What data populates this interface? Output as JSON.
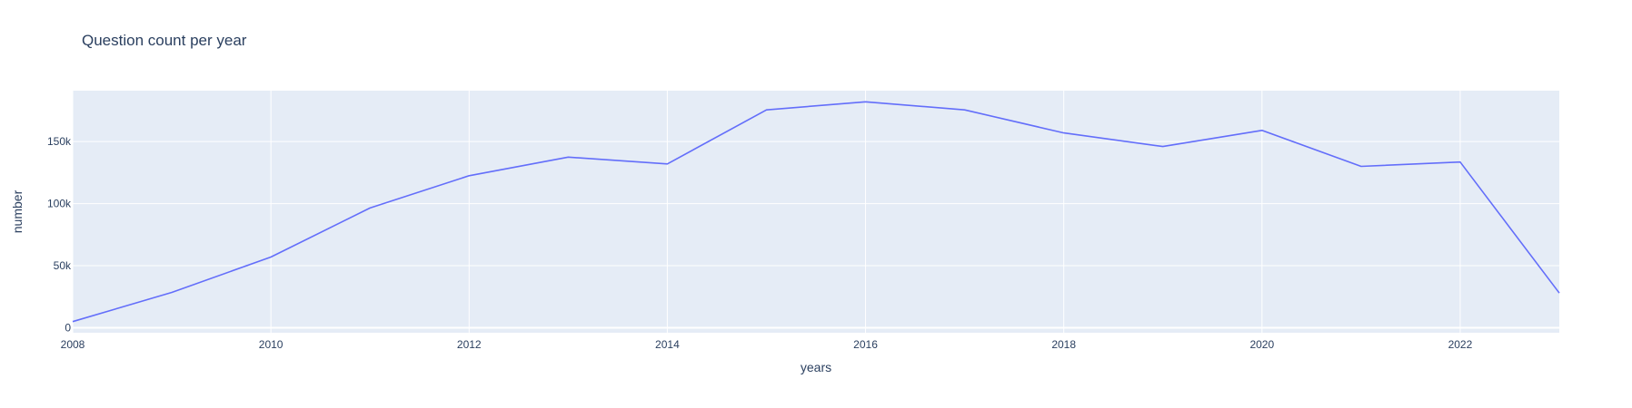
{
  "chart_data": {
    "type": "line",
    "title": "Question count per year",
    "xlabel": "years",
    "ylabel": "number",
    "x": [
      2008,
      2009,
      2010,
      2011,
      2012,
      2013,
      2014,
      2015,
      2016,
      2017,
      2018,
      2019,
      2020,
      2021,
      2022,
      2023
    ],
    "series": [
      {
        "values": [
          5000,
          28500,
          57000,
          96500,
          122500,
          137500,
          132000,
          175500,
          182000,
          175500,
          157000,
          146000,
          159000,
          130000,
          133500,
          28000
        ]
      }
    ],
    "xlim": [
      2008,
      2023
    ],
    "ylim": [
      -4000,
      191000
    ],
    "x_ticks": [
      {
        "value": 2008,
        "label": "2008"
      },
      {
        "value": 2010,
        "label": "2010"
      },
      {
        "value": 2012,
        "label": "2012"
      },
      {
        "value": 2014,
        "label": "2014"
      },
      {
        "value": 2016,
        "label": "2016"
      },
      {
        "value": 2018,
        "label": "2018"
      },
      {
        "value": 2020,
        "label": "2020"
      },
      {
        "value": 2022,
        "label": "2022"
      }
    ],
    "y_ticks": [
      {
        "value": 0,
        "label": "0"
      },
      {
        "value": 50000,
        "label": "50k"
      },
      {
        "value": 100000,
        "label": "100k"
      },
      {
        "value": 150000,
        "label": "150k"
      }
    ],
    "grid": true,
    "colors": {
      "plot_bg": "#e5ecf6",
      "grid": "#ffffff",
      "line": "#636efa",
      "text": "#2a3f5f"
    }
  }
}
